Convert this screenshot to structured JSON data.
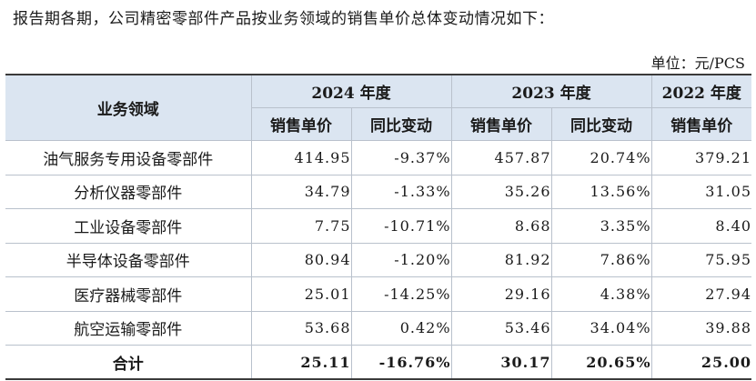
{
  "intro_text": "报告期各期，公司精密零部件产品按业务领域的销售单价总体变动情况如下：",
  "unit_label": "单位：元/PCS",
  "table": {
    "category_header": "业务领域",
    "years": [
      {
        "label": "2024 年度"
      },
      {
        "label": "2023 年度"
      },
      {
        "label": "2022 年度"
      }
    ],
    "sub_headers": {
      "price": "销售单价",
      "change": "同比变动"
    },
    "rows": [
      {
        "category": "油气服务专用设备零部件",
        "p2024": "414.95",
        "c2024": "-9.37%",
        "p2023": "457.87",
        "c2023": "20.74%",
        "p2022": "379.21"
      },
      {
        "category": "分析仪器零部件",
        "p2024": "34.79",
        "c2024": "-1.33%",
        "p2023": "35.26",
        "c2023": "13.56%",
        "p2022": "31.05"
      },
      {
        "category": "工业设备零部件",
        "p2024": "7.75",
        "c2024": "-10.71%",
        "p2023": "8.68",
        "c2023": "3.35%",
        "p2022": "8.40"
      },
      {
        "category": "半导体设备零部件",
        "p2024": "80.94",
        "c2024": "-1.20%",
        "p2023": "81.92",
        "c2023": "7.86%",
        "p2022": "75.95"
      },
      {
        "category": "医疗器械零部件",
        "p2024": "25.01",
        "c2024": "-14.25%",
        "p2023": "29.16",
        "c2023": "4.38%",
        "p2022": "27.94"
      },
      {
        "category": "航空运输零部件",
        "p2024": "53.68",
        "c2024": "0.42%",
        "p2023": "53.46",
        "c2023": "34.04%",
        "p2022": "39.88"
      }
    ],
    "total": {
      "category": "合计",
      "p2024": "25.11",
      "c2024": "-16.76%",
      "p2023": "30.17",
      "c2023": "20.65%",
      "p2022": "25.00"
    }
  },
  "colors": {
    "header_bg": "#dbe5f1",
    "grid_line": "#b9c1cc",
    "rule_line": "#3a3a3a"
  }
}
